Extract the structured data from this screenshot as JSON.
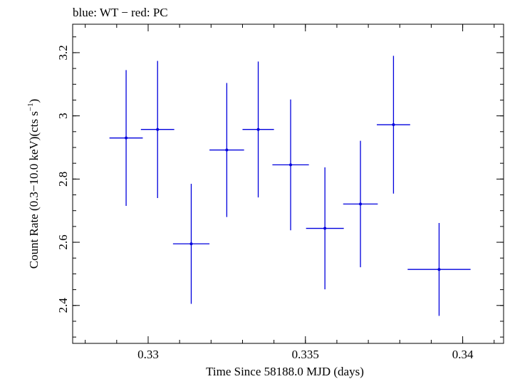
{
  "chart_data": {
    "type": "scatter",
    "title": "blue: WT − red: PC",
    "xlabel": "Time Since 58188.0 MJD (days)",
    "ylabel_main": "Count Rate (0.3−10.0 keV)(cts s",
    "ylabel_sup": "−1",
    "ylabel_end": ")",
    "xlim": [
      0.3276,
      0.3413
    ],
    "ylim": [
      2.28,
      3.29
    ],
    "xticks": [
      0.33,
      0.335,
      0.34
    ],
    "xtick_labels": [
      "0.33",
      "0.335",
      "0.34"
    ],
    "yticks": [
      2.4,
      2.6,
      2.8,
      3.0,
      3.2
    ],
    "ytick_labels": [
      "2.4",
      "2.6",
      "2.8",
      "3",
      "3.2"
    ],
    "x_minor_step": 0.001,
    "y_minor_step": 0.05,
    "grid": false,
    "series": [
      {
        "color": "#0000dd",
        "points": [
          {
            "x": 0.3293,
            "y": 2.93,
            "xerr": 0.00053,
            "yerr_low": 0.215,
            "yerr_high": 0.215
          },
          {
            "x": 0.3303,
            "y": 2.957,
            "xerr": 0.00053,
            "yerr_low": 0.217,
            "yerr_high": 0.217
          },
          {
            "x": 0.33137,
            "y": 2.595,
            "xerr": 0.00058,
            "yerr_low": 0.19,
            "yerr_high": 0.19
          },
          {
            "x": 0.3325,
            "y": 2.892,
            "xerr": 0.00055,
            "yerr_low": 0.212,
            "yerr_high": 0.212
          },
          {
            "x": 0.3335,
            "y": 2.957,
            "xerr": 0.0005,
            "yerr_low": 0.215,
            "yerr_high": 0.215
          },
          {
            "x": 0.33453,
            "y": 2.845,
            "xerr": 0.00058,
            "yerr_low": 0.207,
            "yerr_high": 0.207
          },
          {
            "x": 0.33562,
            "y": 2.644,
            "xerr": 0.0006,
            "yerr_low": 0.193,
            "yerr_high": 0.193
          },
          {
            "x": 0.33675,
            "y": 2.721,
            "xerr": 0.00055,
            "yerr_low": 0.2,
            "yerr_high": 0.2
          },
          {
            "x": 0.3378,
            "y": 2.972,
            "xerr": 0.00053,
            "yerr_low": 0.218,
            "yerr_high": 0.218
          },
          {
            "x": 0.33925,
            "y": 2.514,
            "xerr": 0.001,
            "yerr_low": 0.147,
            "yerr_high": 0.147
          }
        ]
      }
    ]
  }
}
